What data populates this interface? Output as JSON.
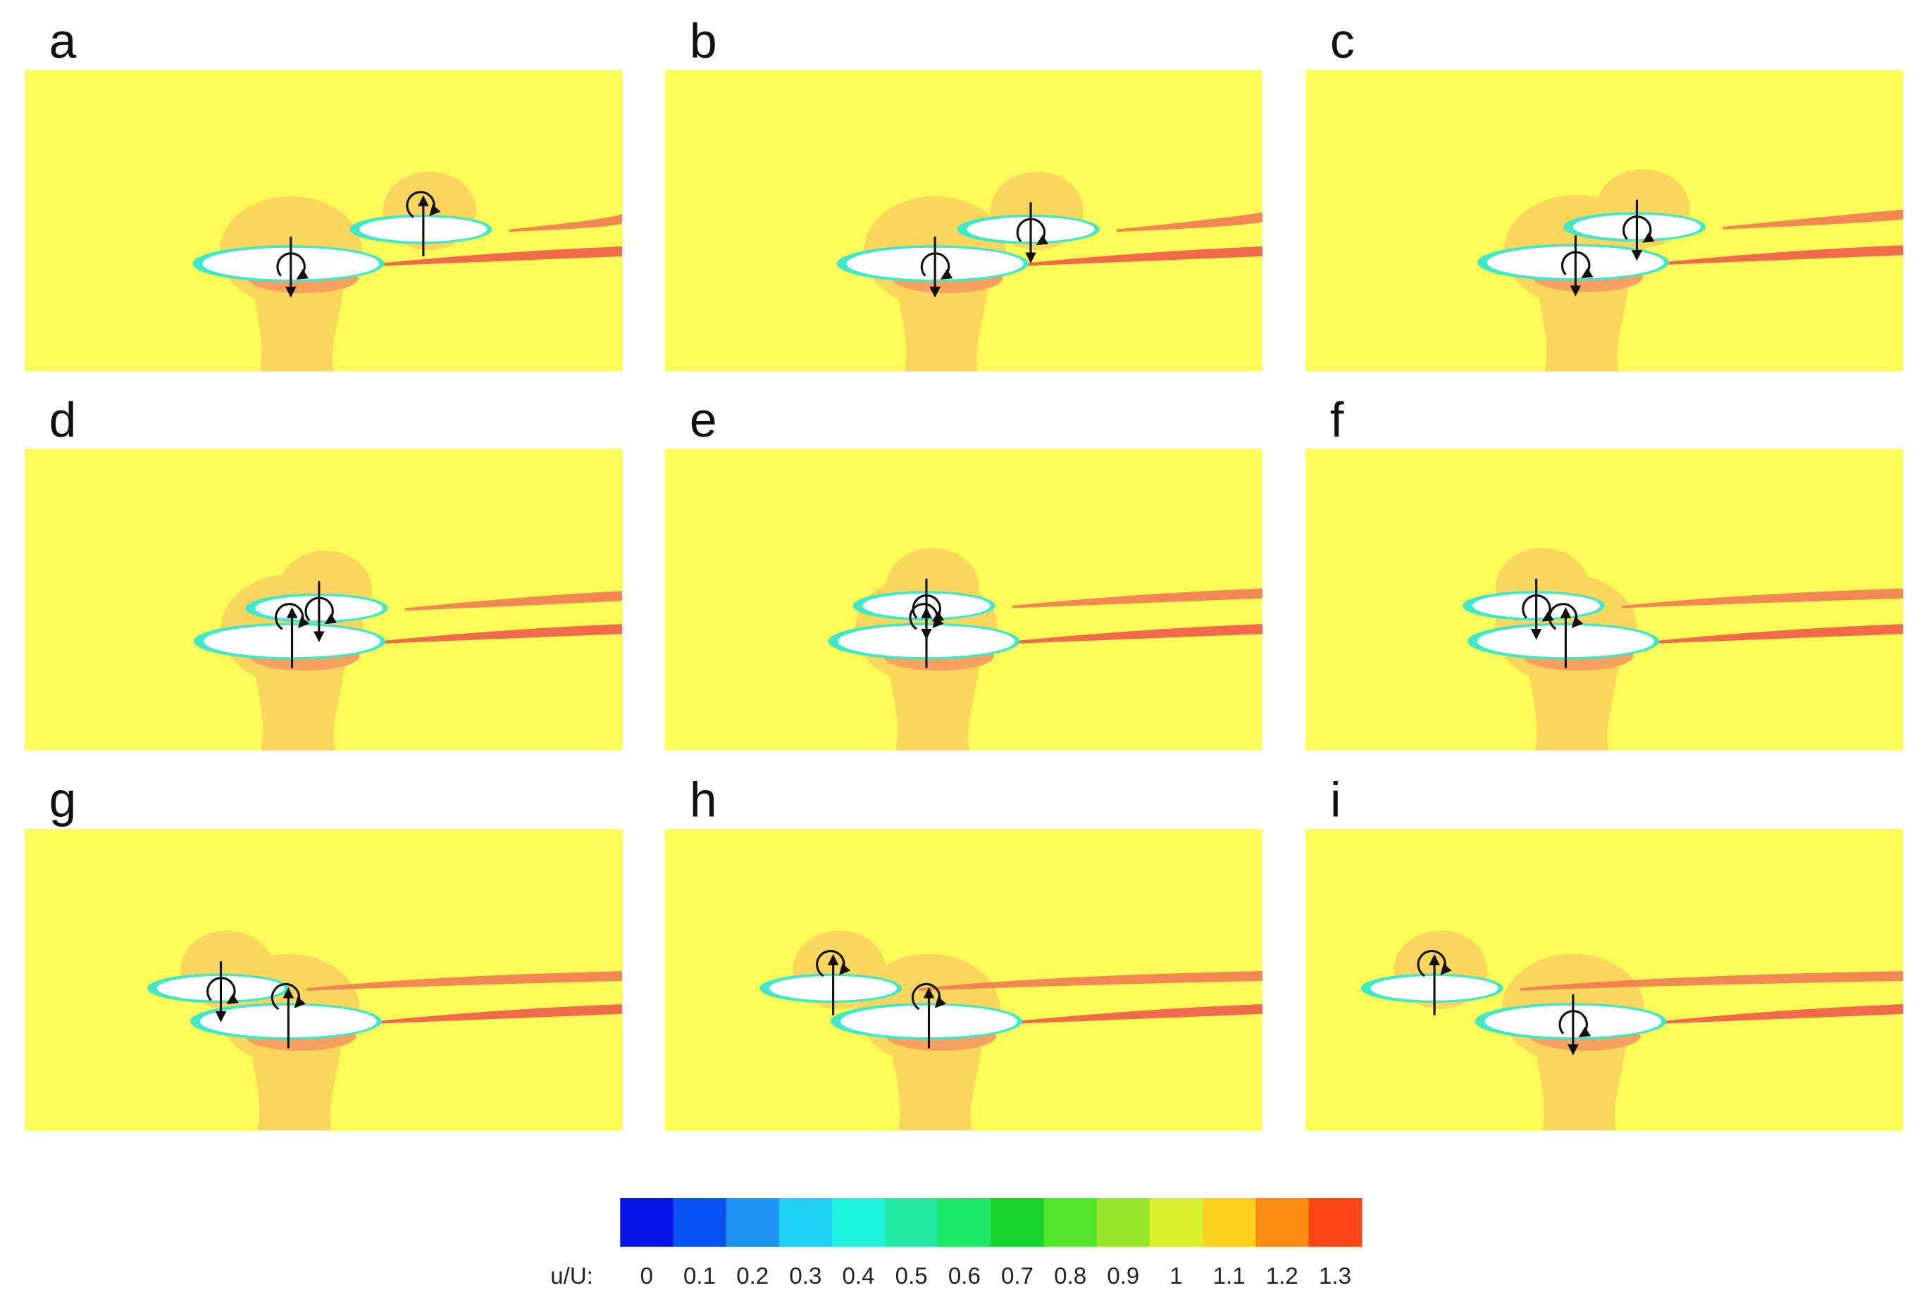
{
  "panels": [
    {
      "label": "a"
    },
    {
      "label": "b"
    },
    {
      "label": "c"
    },
    {
      "label": "d"
    },
    {
      "label": "e"
    },
    {
      "label": "f"
    },
    {
      "label": "g"
    },
    {
      "label": "h"
    },
    {
      "label": "i"
    }
  ],
  "colorbar": {
    "label": "u/U:",
    "ticks": [
      0,
      0.1,
      0.2,
      0.3,
      0.4,
      0.5,
      0.6,
      0.7,
      0.8,
      0.9,
      1,
      1.1,
      1.2,
      1.3
    ],
    "colors": [
      "#0a14e6",
      "#0b52f2",
      "#1c92f0",
      "#1fd0f2",
      "#1cf2dc",
      "#22e8a2",
      "#1ee868",
      "#17d42a",
      "#52e42a",
      "#98e62a",
      "#dcf032",
      "#fad21e",
      "#fa8c14",
      "#fa4614"
    ]
  }
}
